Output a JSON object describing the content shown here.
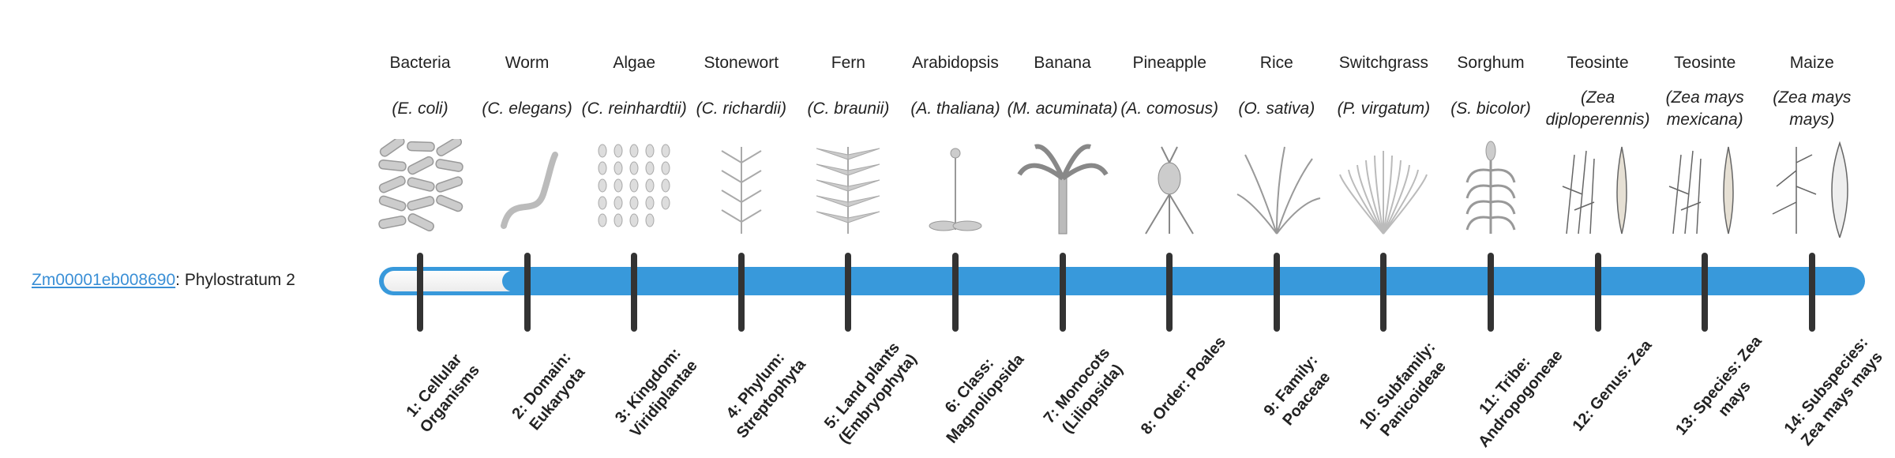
{
  "gene": {
    "id": "Zm00001eb008690",
    "suffix": ": Phylostratum 2"
  },
  "phylostratum": 2,
  "colors": {
    "bar": "#3899db",
    "tick": "#333333",
    "link": "#3a8fd6"
  },
  "strata": [
    {
      "common": "Bacteria",
      "species": "(E. coli)",
      "rank": "1: Cellular Organisms",
      "icon": "bacteria-icon"
    },
    {
      "common": "Worm",
      "species": "(C. elegans)",
      "rank": "2: Domain: Eukaryota",
      "icon": "worm-icon"
    },
    {
      "common": "Algae",
      "species": "(C. reinhardtii)",
      "rank": "3: Kingdom: Viridiplantae",
      "icon": "algae-icon"
    },
    {
      "common": "Stonewort",
      "species": "(C. richardii)",
      "rank": "4: Phylum: Streptophyta",
      "icon": "stonewort-icon"
    },
    {
      "common": "Fern",
      "species": "(C. braunii)",
      "rank": "5: Land plants (Embryophyta)",
      "icon": "fern-icon"
    },
    {
      "common": "Arabidopsis",
      "species": "(A. thaliana)",
      "rank": "6: Class: Magnoliopsida",
      "icon": "arabidopsis-icon"
    },
    {
      "common": "Banana",
      "species": "(M. acuminata)",
      "rank": "7: Monocots (Liliopsida)",
      "icon": "banana-icon"
    },
    {
      "common": "Pineapple",
      "species": "(A. comosus)",
      "rank": "8: Order: Poales",
      "icon": "pineapple-icon"
    },
    {
      "common": "Rice",
      "species": "(O. sativa)",
      "rank": "9: Family: Poaceae",
      "icon": "rice-icon"
    },
    {
      "common": "Switchgrass",
      "species": "(P. virgatum)",
      "rank": "10: Subfamily: Panicoideae",
      "icon": "switchgrass-icon"
    },
    {
      "common": "Sorghum",
      "species": "(S. bicolor)",
      "rank": "11: Tribe: Andropogoneae",
      "icon": "sorghum-icon"
    },
    {
      "common": "Teosinte",
      "species": "(Zea diploperennis)",
      "rank": "12: Genus: Zea",
      "icon": "teosinte-icon"
    },
    {
      "common": "Teosinte",
      "species": "(Zea mays mexicana)",
      "rank": "13: Species: Zea mays",
      "icon": "teosinte-icon"
    },
    {
      "common": "Maize",
      "species": "(Zea mays mays)",
      "rank": "14: Subspecies: Zea mays mays",
      "icon": "maize-icon"
    }
  ]
}
